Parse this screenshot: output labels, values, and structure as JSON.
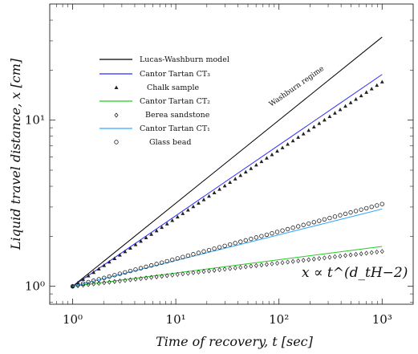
{
  "chart_data": {
    "type": "scatter",
    "xlabel": "Time of recovery, t  [sec]",
    "ylabel": "Liquid travel distance, x  [cm]",
    "x_scale": "log",
    "y_scale": "log",
    "xlim": [
      0.6,
      2000
    ],
    "ylim": [
      0.78,
      50
    ],
    "x_tick_values": [
      1,
      10,
      100,
      1000
    ],
    "x_tick_labels": [
      "10⁰",
      "10¹",
      "10²",
      "10³"
    ],
    "y_tick_values": [
      1,
      10
    ],
    "y_tick_labels": [
      "10⁰",
      "10¹"
    ],
    "grid": false,
    "legend_position": "top-left",
    "annotations": [
      {
        "text": "Washburn regime"
      },
      {
        "text": "x ∝ t^(d_tH−2)"
      }
    ],
    "series": [
      {
        "name": "Lucas-Washburn model",
        "kind": "line",
        "color": "#000000",
        "exponent": 0.5,
        "x_range": [
          1,
          1000
        ]
      },
      {
        "name": "Cantor Tartan CT₃",
        "kind": "line",
        "color": "#2a2aff",
        "exponent": 0.425,
        "x_range": [
          1,
          1000
        ]
      },
      {
        "name": "Chalk sample",
        "kind": "markers",
        "marker": "triangle",
        "exponent": 0.41,
        "x_range": [
          1,
          1000
        ]
      },
      {
        "name": "Cantor Tartan CT₂",
        "kind": "line",
        "color": "#22cc22",
        "exponent": 0.08,
        "x_range": [
          1,
          1000
        ]
      },
      {
        "name": "Berea sandstone",
        "kind": "markers",
        "marker": "diamond",
        "exponent": 0.07,
        "x_range": [
          1,
          1000
        ]
      },
      {
        "name": "Cantor Tartan CT₁",
        "kind": "line",
        "color": "#33aaff",
        "exponent": 0.155,
        "x_range": [
          1,
          1000
        ]
      },
      {
        "name": "Glass bead",
        "kind": "markers",
        "marker": "circle",
        "exponent": 0.165,
        "x_range": [
          1,
          1000
        ]
      }
    ]
  }
}
